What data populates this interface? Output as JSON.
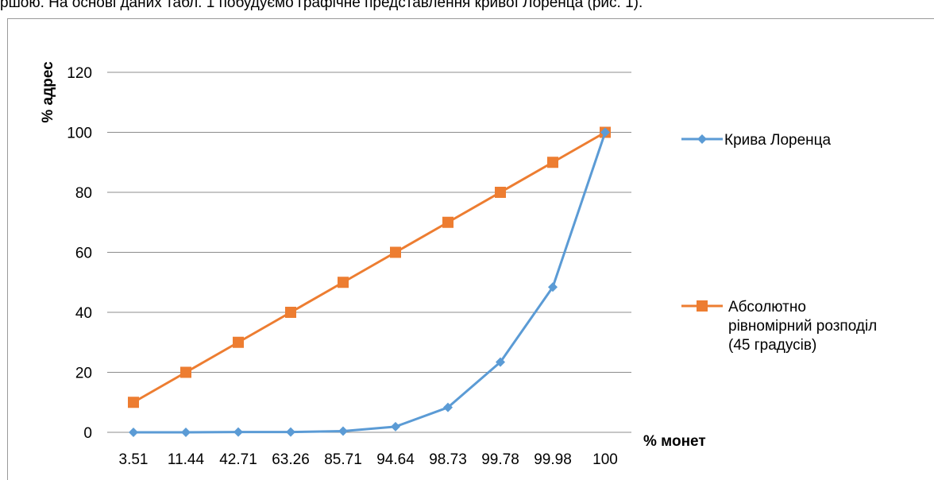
{
  "document": {
    "text_above": "ршою. На основі даних табл. 1 побудуємо графічне представлення кривої Лоренца (рис. 1)."
  },
  "chart_data": {
    "type": "line",
    "title": "",
    "xlabel": "% монет",
    "ylabel": "% адрес",
    "categories": [
      "3.51",
      "11.44",
      "42.71",
      "63.26",
      "85.71",
      "94.64",
      "98.73",
      "99.78",
      "99.98",
      "100"
    ],
    "ylim": [
      0,
      120
    ],
    "yticks": [
      0,
      20,
      40,
      60,
      80,
      100,
      120
    ],
    "grid": true,
    "legend_position": "right",
    "series": [
      {
        "name": "Крива Лоренца",
        "color": "#5b9bd5",
        "marker": "diamond",
        "values": [
          0,
          0,
          0.1,
          0.1,
          0.4,
          1.9,
          8.3,
          23.4,
          48.4,
          100
        ]
      },
      {
        "name_lines": [
          "Абсолютно",
          "рівномірний розподіл",
          "(45 градусів)"
        ],
        "color": "#ed7d31",
        "marker": "square",
        "values": [
          10,
          20,
          30,
          40,
          50,
          60,
          70,
          80,
          90,
          100
        ]
      }
    ]
  }
}
